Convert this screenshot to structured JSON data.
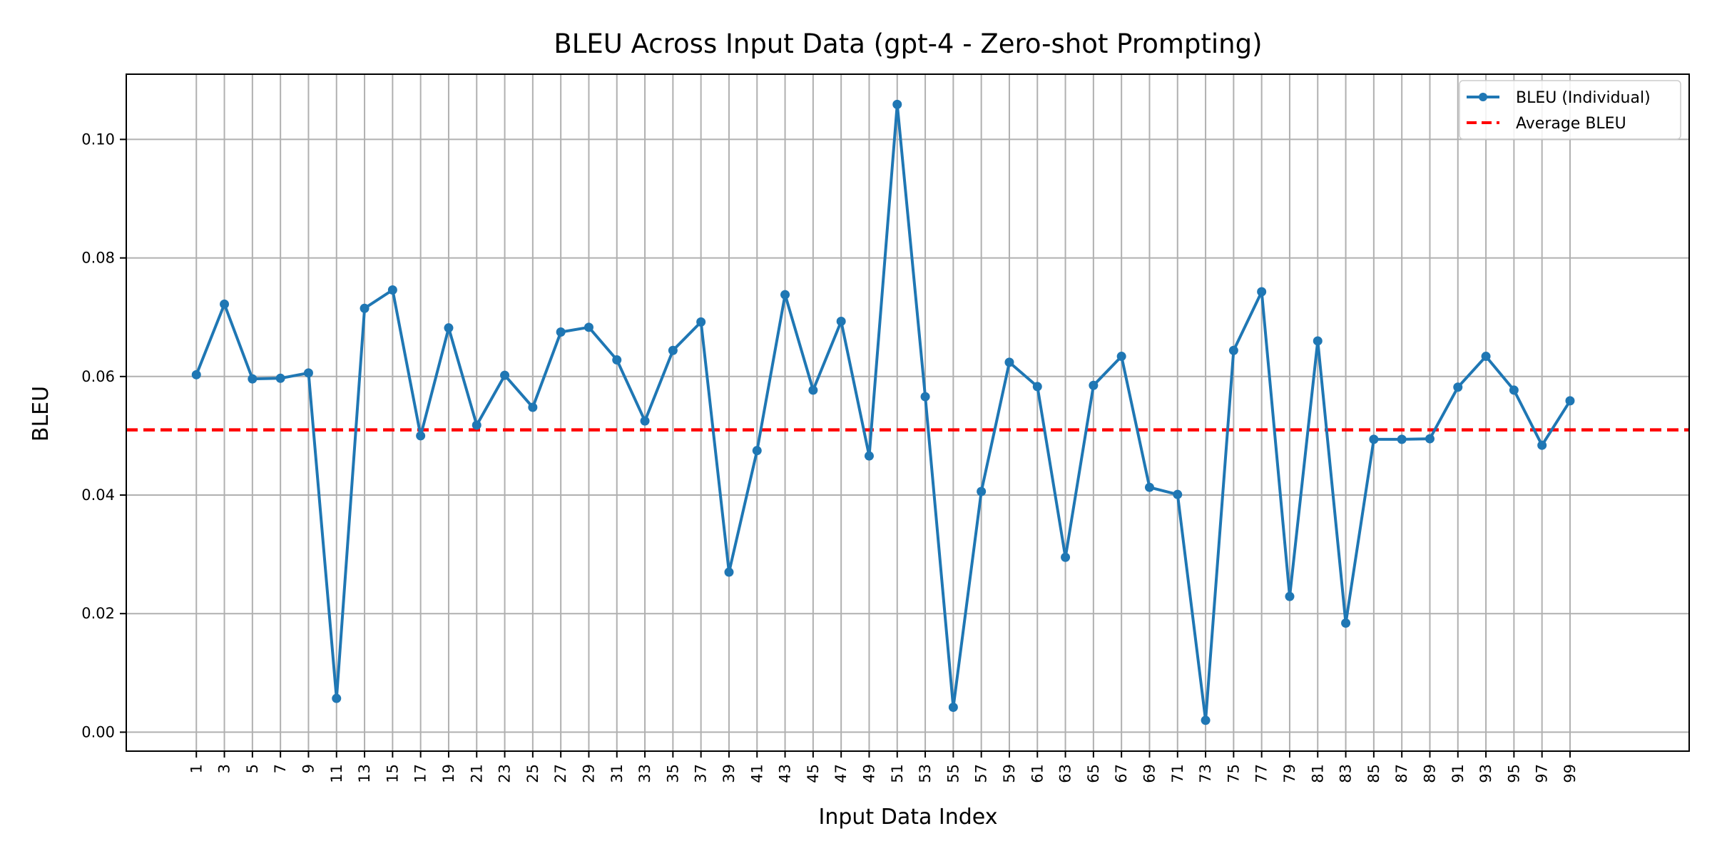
{
  "chart_data": {
    "type": "line",
    "title": "BLEU Across Input Data (gpt-4 - Zero-shot Prompting)",
    "xlabel": "Input Data Index",
    "ylabel": "BLEU",
    "ylim": [
      -0.0032,
      0.111
    ],
    "y_ticks": [
      0.0,
      0.02,
      0.04,
      0.06,
      0.08,
      0.1
    ],
    "y_tick_labels": [
      "0.00",
      "0.02",
      "0.04",
      "0.06",
      "0.08",
      "0.10"
    ],
    "x_tick_labels": [
      "1",
      "3",
      "5",
      "7",
      "9",
      "11",
      "13",
      "15",
      "17",
      "19",
      "21",
      "23",
      "25",
      "27",
      "29",
      "31",
      "33",
      "35",
      "37",
      "39",
      "41",
      "43",
      "45",
      "47",
      "49",
      "51",
      "53",
      "55",
      "57",
      "59",
      "61",
      "63",
      "65",
      "67",
      "69",
      "71",
      "73",
      "75",
      "77",
      "79",
      "81",
      "83",
      "85",
      "87",
      "89",
      "91",
      "93",
      "95",
      "97",
      "99"
    ],
    "grid": true,
    "legend_position": "top-right",
    "series": [
      {
        "name": "BLEU (Individual)",
        "color": "#1f77b4",
        "style": "solid-with-markers",
        "x": [
          1,
          3,
          5,
          7,
          9,
          11,
          13,
          15,
          17,
          19,
          21,
          23,
          25,
          27,
          29,
          31,
          33,
          35,
          37,
          39,
          41,
          43,
          45,
          47,
          49,
          51,
          53,
          55,
          57,
          59,
          61,
          63,
          65,
          67,
          69,
          71,
          73,
          75,
          77,
          79,
          81,
          83,
          85,
          87,
          89,
          91,
          93,
          95,
          97,
          99
        ],
        "values": [
          0.0603,
          0.0722,
          0.0596,
          0.0597,
          0.0606,
          0.0057,
          0.0715,
          0.0746,
          0.05,
          0.0682,
          0.0518,
          0.0602,
          0.0548,
          0.0675,
          0.0683,
          0.0628,
          0.0525,
          0.0644,
          0.0692,
          0.027,
          0.0475,
          0.0738,
          0.0577,
          0.0693,
          0.0466,
          0.1059,
          0.0566,
          0.0042,
          0.0406,
          0.0624,
          0.0583,
          0.0295,
          0.0585,
          0.0634,
          0.0413,
          0.0401,
          0.002,
          0.0644,
          0.0743,
          0.0229,
          0.066,
          0.0184,
          0.0494,
          0.0494,
          0.0495,
          0.0582,
          0.0634,
          0.0577,
          0.0484,
          0.0559
        ]
      },
      {
        "name": "Average BLEU",
        "color": "#ff0000",
        "style": "dashed",
        "value": 0.051
      }
    ]
  }
}
